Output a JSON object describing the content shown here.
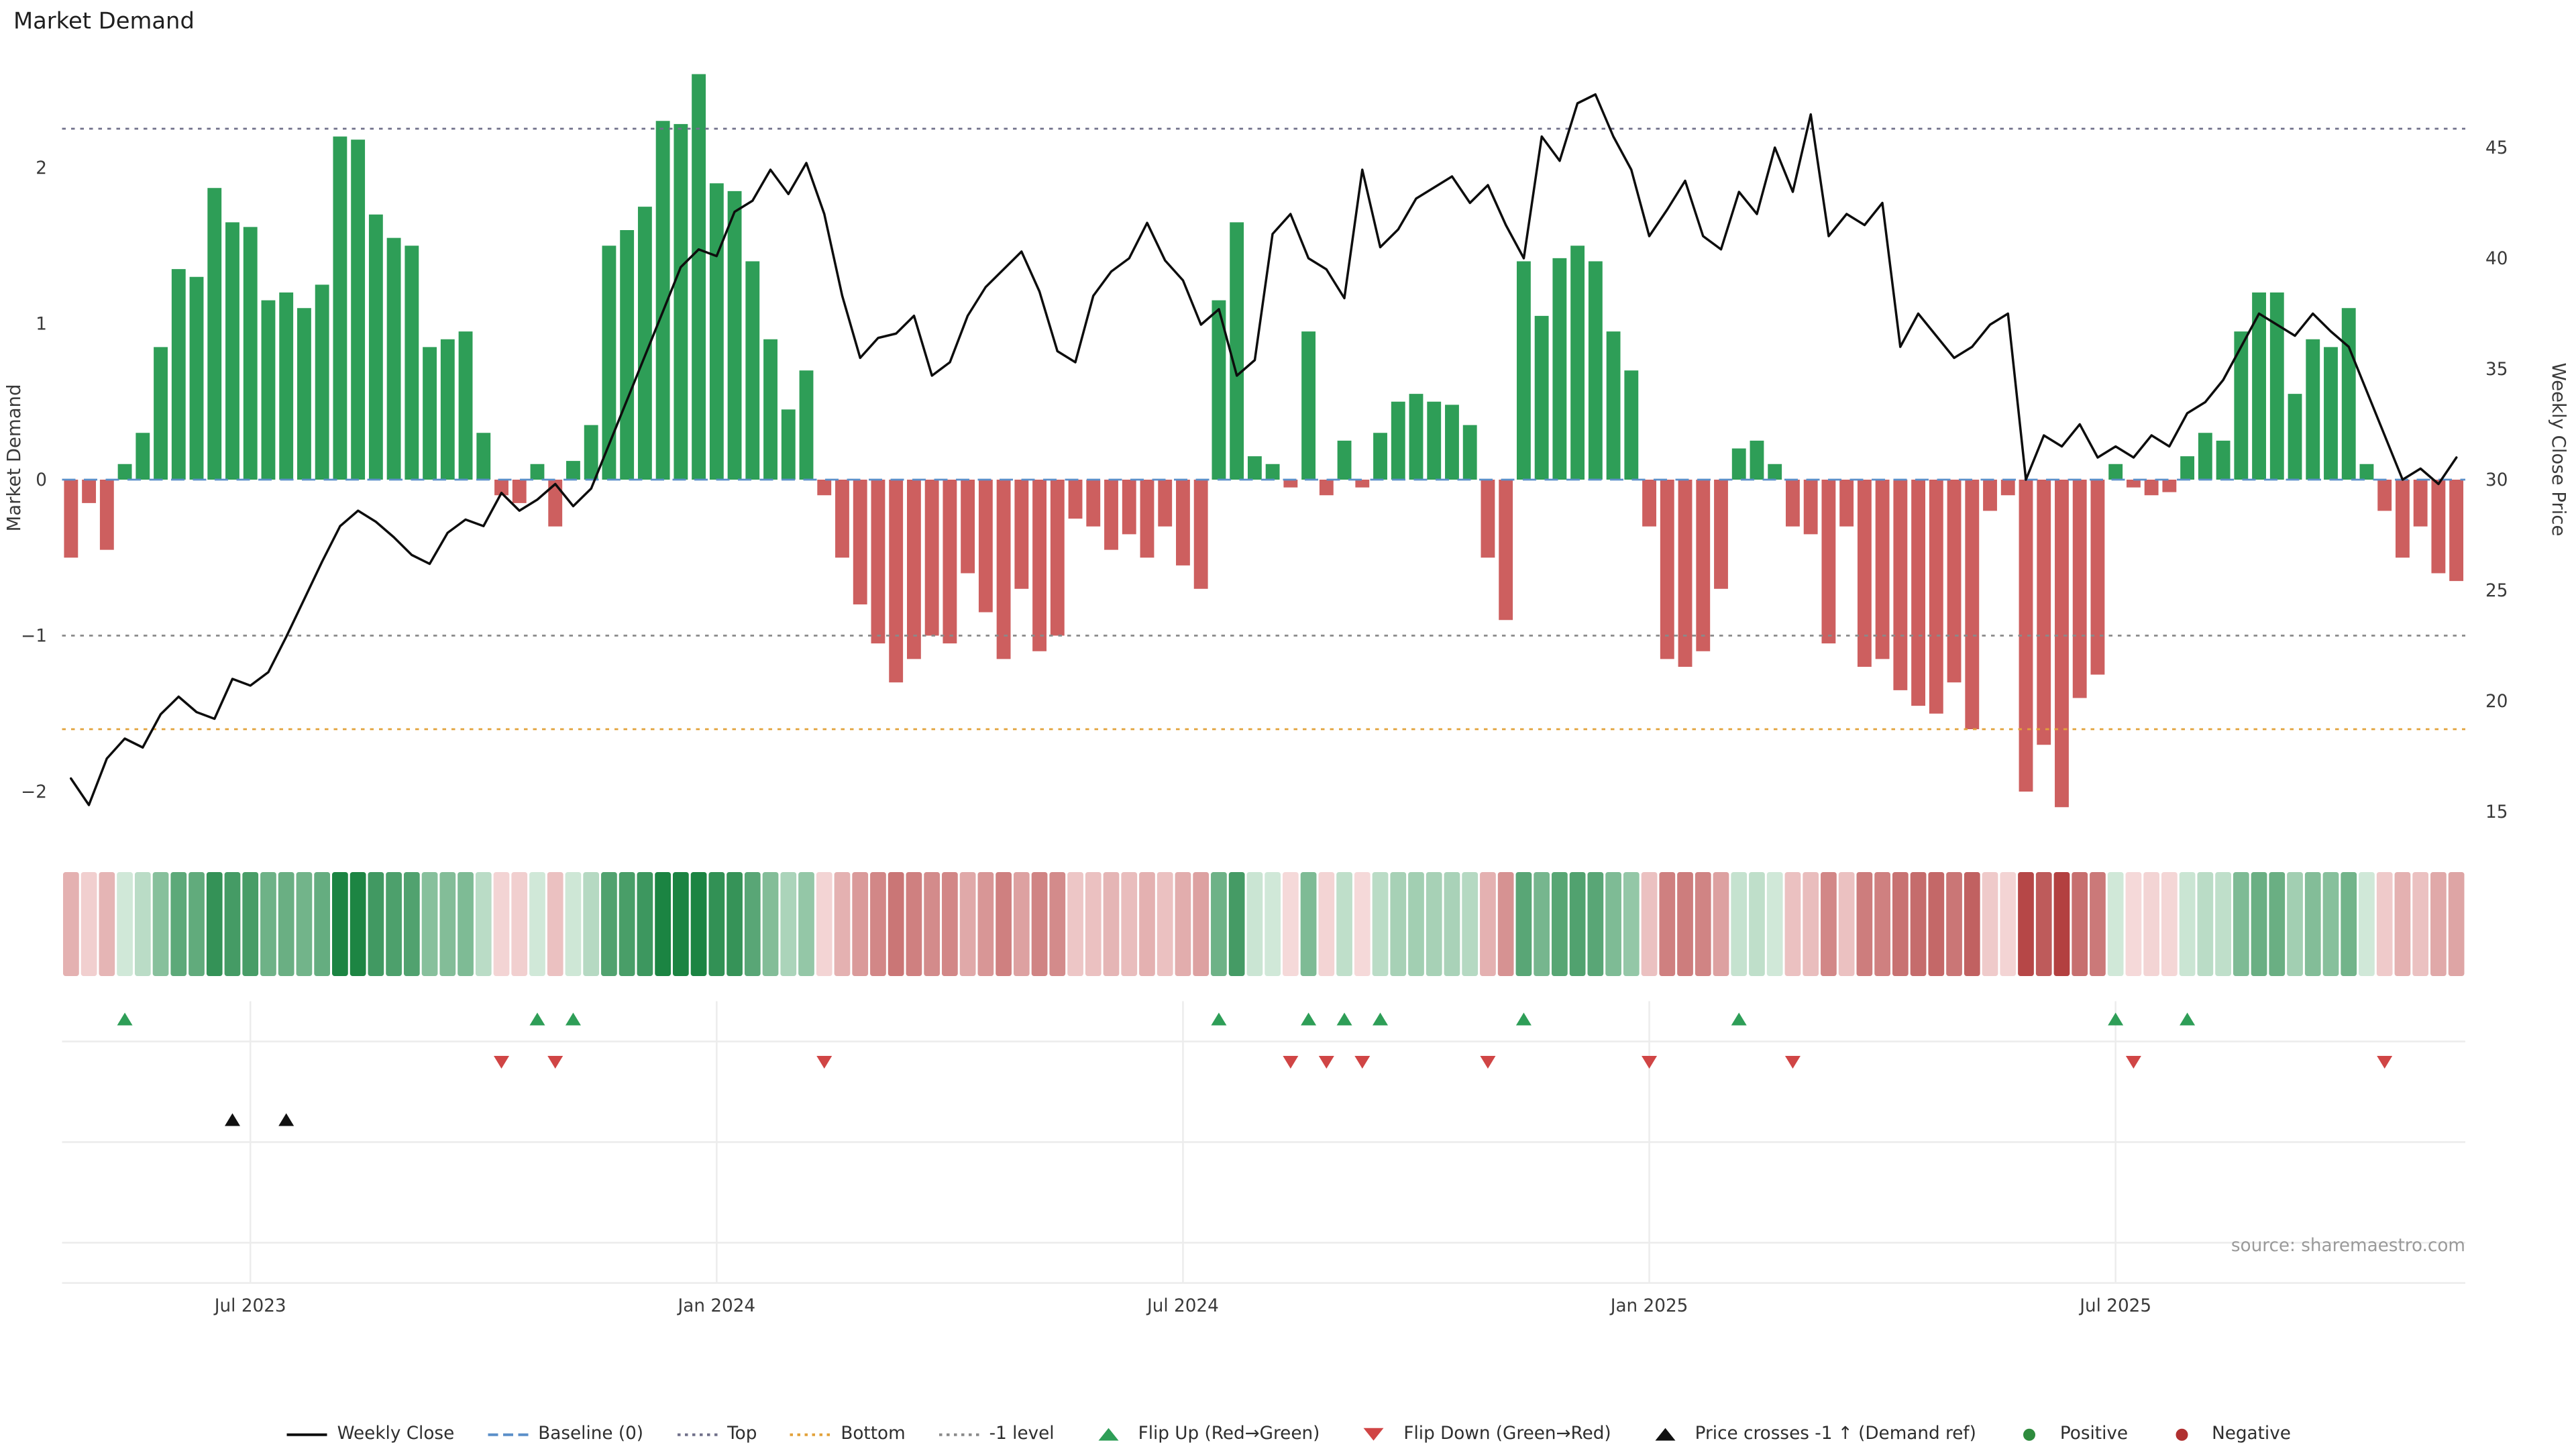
{
  "page": {
    "title": "Market Demand",
    "left_axis_label": "Market Demand",
    "right_axis_label": "Weekly Close Price",
    "source": "source: sharemaestro.com"
  },
  "chart_data": {
    "type": "bar",
    "title": "Market Demand",
    "x_ticks": [
      {
        "label": "Jul 2023",
        "index": 10
      },
      {
        "label": "Jan 2024",
        "index": 36
      },
      {
        "label": "Jul 2024",
        "index": 62
      },
      {
        "label": "Jan 2025",
        "index": 88
      },
      {
        "label": "Jul 2025",
        "index": 114
      }
    ],
    "left_axis": {
      "label": "Market Demand",
      "ticks": [
        -2,
        -1,
        0,
        1,
        2
      ],
      "range": [
        -2.35,
        2.75
      ]
    },
    "right_axis": {
      "label": "Weekly Close Price",
      "ticks": [
        15,
        20,
        25,
        30,
        35,
        40,
        45
      ],
      "range": [
        13.5,
        48.5
      ]
    },
    "series": [
      {
        "name": "Market Demand",
        "kind": "bar",
        "axis": "left",
        "values": [
          -0.5,
          -0.15,
          -0.45,
          0.1,
          0.3,
          0.85,
          1.35,
          1.3,
          1.87,
          1.65,
          1.62,
          1.15,
          1.2,
          1.1,
          1.25,
          2.2,
          2.18,
          1.7,
          1.55,
          1.5,
          0.85,
          0.9,
          0.95,
          0.3,
          -0.1,
          -0.15,
          0.1,
          -0.3,
          0.12,
          0.35,
          1.5,
          1.6,
          1.75,
          2.3,
          2.28,
          2.6,
          1.9,
          1.85,
          1.4,
          0.9,
          0.45,
          0.7,
          -0.1,
          -0.5,
          -0.8,
          -1.05,
          -1.3,
          -1.15,
          -1.0,
          -1.05,
          -0.6,
          -0.85,
          -1.15,
          -0.7,
          -1.1,
          -1.0,
          -0.25,
          -0.3,
          -0.45,
          -0.35,
          -0.5,
          -0.3,
          -0.55,
          -0.7,
          1.15,
          1.65,
          0.15,
          0.1,
          -0.05,
          0.95,
          -0.1,
          0.25,
          -0.05,
          0.3,
          0.5,
          0.55,
          0.5,
          0.48,
          0.35,
          -0.5,
          -0.9,
          1.4,
          1.05,
          1.42,
          1.5,
          1.4,
          0.95,
          0.7,
          -0.3,
          -1.15,
          -1.2,
          -1.1,
          -0.7,
          0.2,
          0.25,
          0.1,
          -0.3,
          -0.35,
          -1.05,
          -0.3,
          -1.2,
          -1.15,
          -1.35,
          -1.45,
          -1.5,
          -1.3,
          -1.6,
          -0.2,
          -0.1,
          -2.0,
          -1.7,
          -2.1,
          -1.4,
          -1.25,
          0.1,
          -0.05,
          -0.1,
          -0.08,
          0.15,
          0.3,
          0.25,
          0.95,
          1.2,
          1.2,
          0.55,
          0.9,
          0.85,
          1.1,
          0.1,
          -0.2,
          -0.5,
          -0.3,
          -0.6,
          -0.65
        ]
      },
      {
        "name": "Weekly Close",
        "kind": "line",
        "axis": "right",
        "values": [
          16.5,
          15.3,
          17.4,
          18.3,
          17.9,
          19.4,
          20.2,
          19.5,
          19.2,
          21.0,
          20.7,
          21.3,
          22.9,
          24.6,
          26.3,
          27.9,
          28.6,
          28.1,
          27.4,
          26.6,
          26.2,
          27.6,
          28.2,
          27.9,
          29.4,
          28.6,
          29.1,
          29.8,
          28.8,
          29.6,
          31.6,
          33.6,
          35.6,
          37.6,
          39.6,
          40.4,
          40.1,
          42.1,
          42.6,
          44.0,
          42.9,
          44.3,
          42.0,
          38.3,
          35.5,
          36.4,
          36.6,
          37.4,
          34.7,
          35.3,
          37.4,
          38.7,
          39.5,
          40.3,
          38.5,
          35.8,
          35.3,
          38.3,
          39.4,
          40.0,
          41.6,
          39.9,
          39.0,
          37.0,
          37.7,
          34.7,
          35.4,
          41.1,
          42.0,
          40.0,
          39.5,
          38.2,
          44.0,
          40.5,
          41.3,
          42.7,
          43.2,
          43.7,
          42.5,
          43.3,
          41.5,
          40.0,
          45.5,
          44.4,
          47.0,
          47.4,
          45.5,
          44.0,
          41.0,
          42.2,
          43.5,
          41.0,
          40.4,
          43.0,
          42.0,
          45.0,
          43.0,
          46.5,
          41.0,
          42.0,
          41.5,
          42.5,
          36.0,
          37.5,
          36.5,
          35.5,
          36.0,
          37.0,
          37.5,
          30.0,
          32.0,
          31.5,
          32.5,
          31.0,
          31.5,
          31.0,
          32.0,
          31.5,
          33.0,
          33.5,
          34.5,
          36.0,
          37.5,
          37.0,
          36.5,
          37.5,
          36.7,
          36.0,
          34.0,
          32.0,
          30.0,
          30.5,
          29.8,
          31.0
        ]
      }
    ],
    "reference_lines": [
      {
        "name": "Baseline (0)",
        "value": 0,
        "style": "dashed",
        "color": "#5b8fc9"
      },
      {
        "name": "Top",
        "value": 2.25,
        "style": "dotted",
        "color": "#70708a"
      },
      {
        "name": "Bottom",
        "value": -1.6,
        "style": "dotted",
        "color": "#e2a23b"
      },
      {
        "name": "-1 level",
        "value": -1,
        "style": "dotted",
        "color": "#8a8a8a"
      }
    ],
    "markers": {
      "flip_up": {
        "label": "Flip Up (Red→Green)",
        "color": "#2e9e57",
        "weeks": [
          3,
          26,
          28,
          64,
          69,
          71,
          73,
          81,
          93,
          114,
          118
        ]
      },
      "flip_down": {
        "label": "Flip Down (Green→Red)",
        "color": "#d04545",
        "weeks": [
          24,
          27,
          42,
          68,
          70,
          72,
          79,
          88,
          96,
          115,
          129
        ]
      },
      "price_cross": {
        "label": "Price crosses -1 ↑ (Demand ref)",
        "color": "#111111",
        "weeks": [
          9,
          12
        ]
      }
    },
    "colors": {
      "positive": "#2e9e57",
      "negative": "#cd5f5f",
      "price_line": "#0d0d0d"
    },
    "legend": [
      {
        "label": "Weekly Close",
        "symbol": "line",
        "color": "#0d0d0d"
      },
      {
        "label": "Baseline (0)",
        "symbol": "dashed-line",
        "color": "#5b8fc9"
      },
      {
        "label": "Top",
        "symbol": "dotted-line",
        "color": "#70708a"
      },
      {
        "label": "Bottom",
        "symbol": "dotted-line",
        "color": "#e2a23b"
      },
      {
        "label": "-1 level",
        "symbol": "dotted-line",
        "color": "#8a8a8a"
      },
      {
        "label": "Flip Up (Red→Green)",
        "symbol": "triangle-up",
        "color": "#2e9e57"
      },
      {
        "label": "Flip Down (Green→Red)",
        "symbol": "triangle-down",
        "color": "#d04545"
      },
      {
        "label": "Price crosses -1 ↑ (Demand ref)",
        "symbol": "triangle-up",
        "color": "#111111"
      },
      {
        "label": "Positive",
        "symbol": "dot",
        "color": "#2e8b3d"
      },
      {
        "label": "Negative",
        "symbol": "dot",
        "color": "#b03030"
      }
    ]
  }
}
